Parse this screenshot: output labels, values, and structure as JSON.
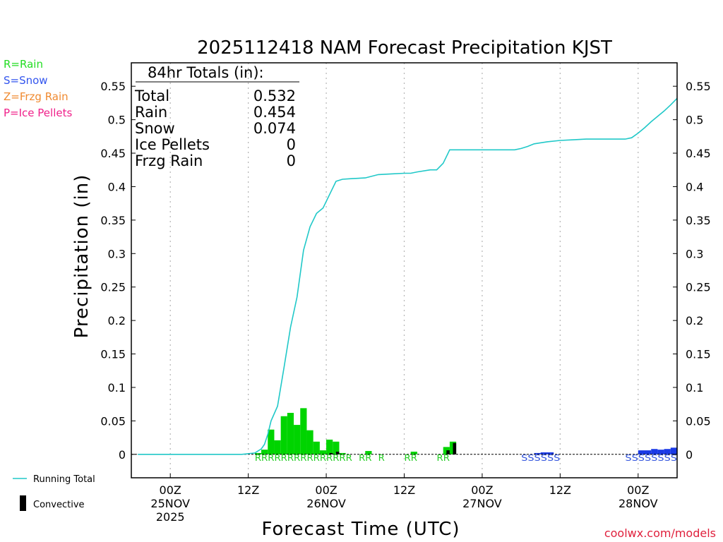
{
  "chart_data": {
    "type": "bar",
    "title": "2025112418 NAM Forecast Precipitation KJST",
    "xlabel": "Forecast Time (UTC)",
    "ylabel": "Precipitation (in)",
    "ylim": [
      -0.035,
      0.585
    ],
    "xlim": [
      -6,
      78
    ],
    "grid": true,
    "y_ticks": [
      {
        "value": 0,
        "label": "0"
      },
      {
        "value": 0.05,
        "label": "0.05"
      },
      {
        "value": 0.1,
        "label": "0.1"
      },
      {
        "value": 0.15,
        "label": "0.15"
      },
      {
        "value": 0.2,
        "label": "0.2"
      },
      {
        "value": 0.25,
        "label": "0.25"
      },
      {
        "value": 0.3,
        "label": "0.3"
      },
      {
        "value": 0.35,
        "label": "0.35"
      },
      {
        "value": 0.4,
        "label": "0.4"
      },
      {
        "value": 0.45,
        "label": "0.45"
      },
      {
        "value": 0.5,
        "label": "0.5"
      },
      {
        "value": 0.55,
        "label": "0.55"
      }
    ],
    "x_ticks": [
      {
        "hour": 0,
        "lines": [
          "00Z",
          "25NOV",
          "2025"
        ]
      },
      {
        "hour": 12,
        "lines": [
          "12Z"
        ]
      },
      {
        "hour": 24,
        "lines": [
          "00Z",
          "26NOV"
        ]
      },
      {
        "hour": 36,
        "lines": [
          "12Z"
        ]
      },
      {
        "hour": 48,
        "lines": [
          "00Z",
          "27NOV"
        ]
      },
      {
        "hour": 60,
        "lines": [
          "12Z"
        ]
      },
      {
        "hour": 72,
        "lines": [
          "00Z",
          "28NOV"
        ]
      }
    ],
    "precip_type_legend": [
      {
        "label": "R=Rain",
        "color": "#22dd22"
      },
      {
        "label": "S=Snow",
        "color": "#3355ee"
      },
      {
        "label": "Z=Frzg Rain",
        "color": "#f08a30"
      },
      {
        "label": "P=Ice Pellets",
        "color": "#f0208a"
      }
    ],
    "series_legend": [
      {
        "label": "Running Total",
        "kind": "line",
        "color": "#20c8c8"
      },
      {
        "label": "Convective",
        "kind": "bar",
        "color": "#000000"
      }
    ],
    "totals": {
      "heading": "84hr Totals (in):",
      "rows": [
        {
          "label": "Total",
          "value": "0.532"
        },
        {
          "label": "Rain",
          "value": "0.454"
        },
        {
          "label": "Snow",
          "value": "0.074"
        },
        {
          "label": "Ice Pellets",
          "value": "0"
        },
        {
          "label": "Frzg Rain",
          "value": "0"
        }
      ]
    },
    "bars": [
      {
        "hour": 13.5,
        "value": 0.002,
        "type": "rain"
      },
      {
        "hour": 14.5,
        "value": 0.007,
        "type": "rain"
      },
      {
        "hour": 15.5,
        "value": 0.037,
        "type": "rain"
      },
      {
        "hour": 16.5,
        "value": 0.021,
        "type": "rain"
      },
      {
        "hour": 17.5,
        "value": 0.057,
        "type": "rain"
      },
      {
        "hour": 18.5,
        "value": 0.062,
        "type": "rain"
      },
      {
        "hour": 19.5,
        "value": 0.044,
        "type": "rain"
      },
      {
        "hour": 20.5,
        "value": 0.069,
        "type": "rain"
      },
      {
        "hour": 21.5,
        "value": 0.036,
        "type": "rain"
      },
      {
        "hour": 22.5,
        "value": 0.019,
        "type": "rain"
      },
      {
        "hour": 23.5,
        "value": 0.006,
        "type": "rain"
      },
      {
        "hour": 24.5,
        "value": 0.022,
        "type": "rain",
        "convective": 0.002
      },
      {
        "hour": 25.5,
        "value": 0.019,
        "type": "rain",
        "convective": 0.004
      },
      {
        "hour": 26.5,
        "value": 0.002,
        "type": "rain"
      },
      {
        "hour": 30.5,
        "value": 0.005,
        "type": "rain"
      },
      {
        "hour": 37.5,
        "value": 0.004,
        "type": "rain"
      },
      {
        "hour": 42.5,
        "value": 0.011,
        "type": "rain",
        "convective": 0.006
      },
      {
        "hour": 43.5,
        "value": 0.019,
        "type": "rain",
        "convective": 0.017
      },
      {
        "hour": 56.5,
        "value": 0.002,
        "type": "snow"
      },
      {
        "hour": 57.5,
        "value": 0.003,
        "type": "snow"
      },
      {
        "hour": 58.5,
        "value": 0.003,
        "type": "snow"
      },
      {
        "hour": 72.5,
        "value": 0.006,
        "type": "snow"
      },
      {
        "hour": 73.5,
        "value": 0.006,
        "type": "snow"
      },
      {
        "hour": 74.5,
        "value": 0.008,
        "type": "snow"
      },
      {
        "hour": 75.5,
        "value": 0.007,
        "type": "snow"
      },
      {
        "hour": 76.5,
        "value": 0.008,
        "type": "snow"
      },
      {
        "hour": 77.5,
        "value": 0.01,
        "type": "snow"
      }
    ],
    "running_total": {
      "hour": [
        -5,
        11,
        13,
        14,
        14.5,
        15,
        15.5,
        16.5,
        17.5,
        18.5,
        19.5,
        20.5,
        21.5,
        22.5,
        23.5,
        24.5,
        25.5,
        26.5,
        28,
        30,
        32,
        34,
        36,
        37,
        38,
        40,
        41,
        42,
        43,
        53,
        54,
        55,
        56,
        58,
        60,
        62,
        64,
        66,
        68,
        70,
        71,
        72,
        73,
        74,
        75,
        76,
        77,
        78
      ],
      "value": [
        0,
        0,
        0.002,
        0.008,
        0.015,
        0.03,
        0.05,
        0.072,
        0.13,
        0.19,
        0.235,
        0.305,
        0.34,
        0.36,
        0.368,
        0.388,
        0.408,
        0.411,
        0.412,
        0.413,
        0.418,
        0.419,
        0.42,
        0.42,
        0.422,
        0.425,
        0.425,
        0.435,
        0.455,
        0.455,
        0.457,
        0.46,
        0.464,
        0.467,
        0.469,
        0.47,
        0.471,
        0.471,
        0.471,
        0.471,
        0.473,
        0.48,
        0.488,
        0.497,
        0.505,
        0.513,
        0.522,
        0.532
      ]
    },
    "ptype_labels": [
      {
        "text": "RRRRRRRRRRRRRRR",
        "start": 13.5,
        "type": "rain"
      },
      {
        "text": "RR",
        "start": 29.5,
        "type": "rain"
      },
      {
        "text": "R",
        "start": 32.5,
        "type": "rain"
      },
      {
        "text": "RR",
        "start": 36.5,
        "type": "rain"
      },
      {
        "text": "RR",
        "start": 41.5,
        "type": "rain"
      },
      {
        "text": "SSSSSS",
        "start": 54.5,
        "type": "snow"
      },
      {
        "text": "SSSSSSSS",
        "start": 70.5,
        "type": "snow"
      }
    ],
    "colors": {
      "rain": "#00d400",
      "snow": "#1a3ae6",
      "rain_label": "#22cc22",
      "snow_label": "#3355dd",
      "running_total": "#20c8c8",
      "convective": "#000000",
      "grid": "#b4b4b4"
    },
    "credit": "coolwx.com/models"
  }
}
